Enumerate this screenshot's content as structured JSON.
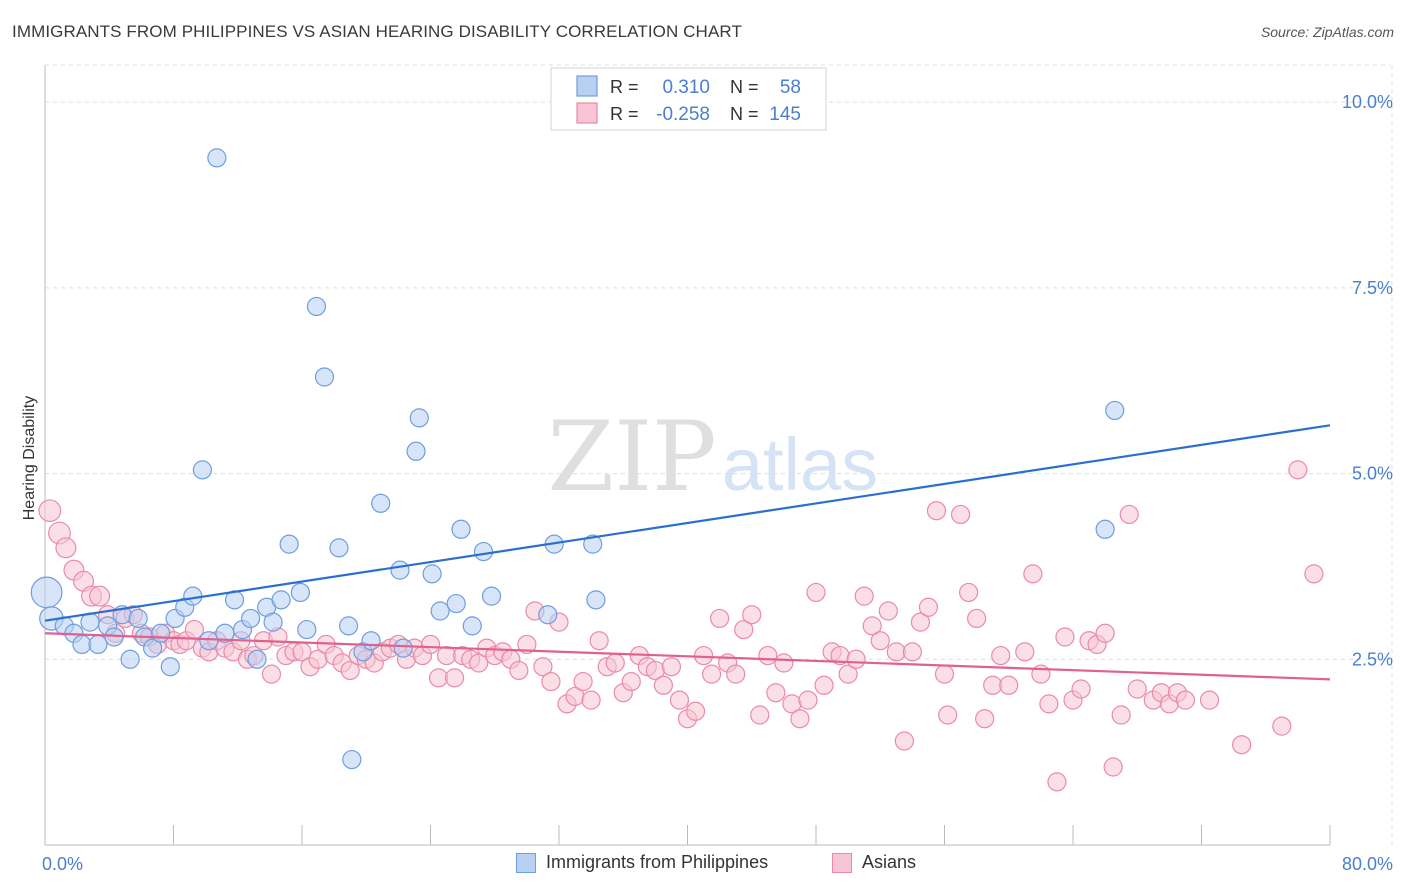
{
  "title": "IMMIGRANTS FROM PHILIPPINES VS ASIAN HEARING DISABILITY CORRELATION CHART",
  "source": "Source: ZipAtlas.com",
  "colors": {
    "blue_fill": "#b8d0f2",
    "blue_stroke": "#6d9ee0",
    "blue_line": "#2a6fd0",
    "pink_fill": "#f7c4d4",
    "pink_stroke": "#ea8aaa",
    "pink_line": "#e0608e",
    "tick_label": "#4a7fcf",
    "grid": "#dddddd"
  },
  "legend_top": [
    {
      "r_label": "R =",
      "r_value": "0.310",
      "n_label": "N =",
      "n_value": "58",
      "series": "blue"
    },
    {
      "r_label": "R =",
      "r_value": "-0.258",
      "n_label": "N =",
      "n_value": "145",
      "series": "pink"
    }
  ],
  "legend_bottom": [
    {
      "label": "Immigrants from Philippines",
      "series": "blue"
    },
    {
      "label": "Asians",
      "series": "pink"
    }
  ],
  "watermark": {
    "zip": "ZIP",
    "atlas": "atlas"
  },
  "chart_data": {
    "type": "scatter",
    "title": "IMMIGRANTS FROM PHILIPPINES VS ASIAN HEARING DISABILITY CORRELATION CHART",
    "xlabel": "",
    "ylabel": "Hearing Disability",
    "xlim": [
      0,
      80
    ],
    "ylim": [
      0,
      10.5
    ],
    "x_tick_labels": [
      {
        "value": 0,
        "label": "0.0%"
      },
      {
        "value": 80,
        "label": "80.0%"
      }
    ],
    "y_ticks": [
      {
        "value": 2.5,
        "label": "2.5%"
      },
      {
        "value": 5.0,
        "label": "5.0%"
      },
      {
        "value": 7.5,
        "label": "7.5%"
      },
      {
        "value": 10.0,
        "label": "10.0%"
      }
    ],
    "grid": true,
    "legend_position": "top-center",
    "series": [
      {
        "name": "Immigrants from Philippines",
        "color": "#6d9ee0",
        "trend": {
          "x": [
            0,
            80
          ],
          "y": [
            3.02,
            5.65
          ]
        },
        "points": [
          [
            0.1,
            3.4,
            1.7
          ],
          [
            0.4,
            3.05,
            1.3
          ],
          [
            1.2,
            2.95,
            1
          ],
          [
            1.8,
            2.85,
            1
          ],
          [
            2.3,
            2.7,
            1
          ],
          [
            2.8,
            3.0,
            1
          ],
          [
            3.3,
            2.7,
            1
          ],
          [
            3.9,
            2.95,
            1
          ],
          [
            4.3,
            2.8,
            1
          ],
          [
            4.8,
            3.1,
            1
          ],
          [
            5.3,
            2.5,
            1
          ],
          [
            5.8,
            3.05,
            1
          ],
          [
            6.2,
            2.8,
            1
          ],
          [
            6.7,
            2.65,
            1
          ],
          [
            7.2,
            2.85,
            1
          ],
          [
            7.8,
            2.4,
            1
          ],
          [
            8.1,
            3.05,
            1
          ],
          [
            8.7,
            3.2,
            1
          ],
          [
            9.2,
            3.35,
            1
          ],
          [
            9.8,
            5.05,
            1
          ],
          [
            10.2,
            2.75,
            1
          ],
          [
            10.7,
            9.25,
            1
          ],
          [
            11.2,
            2.85,
            1
          ],
          [
            11.8,
            3.3,
            1
          ],
          [
            12.3,
            2.9,
            1
          ],
          [
            12.8,
            3.05,
            1
          ],
          [
            13.2,
            2.5,
            1
          ],
          [
            13.8,
            3.2,
            1
          ],
          [
            14.2,
            3.0,
            1
          ],
          [
            14.7,
            3.3,
            1
          ],
          [
            15.2,
            4.05,
            1
          ],
          [
            15.9,
            3.4,
            1
          ],
          [
            16.3,
            2.9,
            1
          ],
          [
            16.9,
            7.25,
            1
          ],
          [
            17.4,
            6.3,
            1
          ],
          [
            18.3,
            4.0,
            1
          ],
          [
            18.9,
            2.95,
            1
          ],
          [
            19.1,
            1.15,
            1
          ],
          [
            19.8,
            2.6,
            1
          ],
          [
            20.3,
            2.75,
            1
          ],
          [
            20.9,
            4.6,
            1
          ],
          [
            22.1,
            3.7,
            1
          ],
          [
            22.3,
            2.65,
            1
          ],
          [
            23.1,
            5.3,
            1
          ],
          [
            23.3,
            5.75,
            1
          ],
          [
            24.1,
            3.65,
            1
          ],
          [
            24.6,
            3.15,
            1
          ],
          [
            25.6,
            3.25,
            1
          ],
          [
            25.9,
            4.25,
            1
          ],
          [
            26.6,
            2.95,
            1
          ],
          [
            27.3,
            3.95,
            1
          ],
          [
            27.8,
            3.35,
            1
          ],
          [
            31.3,
            3.1,
            1
          ],
          [
            31.7,
            4.05,
            1
          ],
          [
            34.1,
            4.05,
            1
          ],
          [
            34.3,
            3.3,
            1
          ],
          [
            66.0,
            4.25,
            1
          ],
          [
            66.6,
            5.85,
            1
          ]
        ]
      },
      {
        "name": "Asians",
        "color": "#ea8aaa",
        "trend": {
          "x": [
            0,
            80
          ],
          "y": [
            2.85,
            2.23
          ]
        },
        "points": [
          [
            0.3,
            4.5,
            1.2
          ],
          [
            0.9,
            4.2,
            1.2
          ],
          [
            1.3,
            4.0,
            1.1
          ],
          [
            1.8,
            3.7,
            1.1
          ],
          [
            2.4,
            3.55,
            1.1
          ],
          [
            2.9,
            3.35,
            1.1
          ],
          [
            3.4,
            3.35,
            1.1
          ],
          [
            3.9,
            3.1,
            1
          ],
          [
            4.4,
            2.85,
            1
          ],
          [
            5.0,
            3.05,
            1
          ],
          [
            5.5,
            3.1,
            1
          ],
          [
            6.0,
            2.85,
            1
          ],
          [
            6.5,
            2.8,
            1
          ],
          [
            7.0,
            2.7,
            1
          ],
          [
            7.5,
            2.85,
            1
          ],
          [
            8.0,
            2.75,
            1
          ],
          [
            8.4,
            2.7,
            1
          ],
          [
            8.8,
            2.75,
            1
          ],
          [
            9.3,
            2.9,
            1
          ],
          [
            9.8,
            2.65,
            1
          ],
          [
            10.2,
            2.6,
            1
          ],
          [
            10.7,
            2.75,
            1
          ],
          [
            11.2,
            2.65,
            1
          ],
          [
            11.7,
            2.6,
            1
          ],
          [
            12.2,
            2.75,
            1
          ],
          [
            12.6,
            2.5,
            1
          ],
          [
            13.0,
            2.55,
            1
          ],
          [
            13.6,
            2.75,
            1
          ],
          [
            14.1,
            2.3,
            1
          ],
          [
            14.5,
            2.8,
            1
          ],
          [
            15.0,
            2.55,
            1
          ],
          [
            15.5,
            2.6,
            1
          ],
          [
            16.0,
            2.6,
            1
          ],
          [
            16.5,
            2.4,
            1
          ],
          [
            17.0,
            2.5,
            1
          ],
          [
            17.5,
            2.7,
            1
          ],
          [
            18.0,
            2.55,
            1
          ],
          [
            18.5,
            2.45,
            1
          ],
          [
            19.0,
            2.35,
            1
          ],
          [
            19.5,
            2.55,
            1
          ],
          [
            20.0,
            2.5,
            1
          ],
          [
            20.5,
            2.45,
            1
          ],
          [
            21.0,
            2.6,
            1
          ],
          [
            21.5,
            2.65,
            1
          ],
          [
            22.0,
            2.7,
            1
          ],
          [
            22.5,
            2.5,
            1
          ],
          [
            23.0,
            2.65,
            1
          ],
          [
            23.5,
            2.55,
            1
          ],
          [
            24.0,
            2.7,
            1
          ],
          [
            24.5,
            2.25,
            1
          ],
          [
            25.0,
            2.55,
            1
          ],
          [
            25.5,
            2.25,
            1
          ],
          [
            26.0,
            2.55,
            1
          ],
          [
            26.5,
            2.5,
            1
          ],
          [
            27.0,
            2.45,
            1
          ],
          [
            27.5,
            2.65,
            1
          ],
          [
            28.0,
            2.55,
            1
          ],
          [
            28.5,
            2.6,
            1
          ],
          [
            29.0,
            2.5,
            1
          ],
          [
            29.5,
            2.35,
            1
          ],
          [
            30.0,
            2.7,
            1
          ],
          [
            30.5,
            3.15,
            1
          ],
          [
            31.0,
            2.4,
            1
          ],
          [
            31.5,
            2.2,
            1
          ],
          [
            32.0,
            3.0,
            1
          ],
          [
            32.5,
            1.9,
            1
          ],
          [
            33.0,
            2.0,
            1
          ],
          [
            33.5,
            2.2,
            1
          ],
          [
            34.0,
            1.95,
            1
          ],
          [
            34.5,
            2.75,
            1
          ],
          [
            35.0,
            2.4,
            1
          ],
          [
            35.5,
            2.45,
            1
          ],
          [
            36.0,
            2.05,
            1
          ],
          [
            36.5,
            2.2,
            1
          ],
          [
            37.0,
            2.55,
            1
          ],
          [
            37.5,
            2.4,
            1
          ],
          [
            38.0,
            2.35,
            1
          ],
          [
            38.5,
            2.15,
            1
          ],
          [
            39.0,
            2.4,
            1
          ],
          [
            39.5,
            1.95,
            1
          ],
          [
            40.0,
            1.7,
            1
          ],
          [
            40.5,
            1.8,
            1
          ],
          [
            41.0,
            2.55,
            1
          ],
          [
            41.5,
            2.3,
            1
          ],
          [
            42.0,
            3.05,
            1
          ],
          [
            42.5,
            2.45,
            1
          ],
          [
            43.0,
            2.3,
            1
          ],
          [
            43.5,
            2.9,
            1
          ],
          [
            44.0,
            3.1,
            1
          ],
          [
            44.5,
            1.75,
            1
          ],
          [
            45.0,
            2.55,
            1
          ],
          [
            45.5,
            2.05,
            1
          ],
          [
            46.0,
            2.45,
            1
          ],
          [
            46.5,
            1.9,
            1
          ],
          [
            47.0,
            1.7,
            1
          ],
          [
            47.5,
            1.95,
            1
          ],
          [
            48.0,
            3.4,
            1
          ],
          [
            48.5,
            2.15,
            1
          ],
          [
            49.0,
            2.6,
            1
          ],
          [
            49.5,
            2.55,
            1
          ],
          [
            50.0,
            2.3,
            1
          ],
          [
            50.5,
            2.5,
            1
          ],
          [
            51.0,
            3.35,
            1
          ],
          [
            51.5,
            2.95,
            1
          ],
          [
            52.0,
            2.75,
            1
          ],
          [
            52.5,
            3.15,
            1
          ],
          [
            53.0,
            2.6,
            1
          ],
          [
            53.5,
            1.4,
            1
          ],
          [
            54.0,
            2.6,
            1
          ],
          [
            54.5,
            3.0,
            1
          ],
          [
            55.0,
            3.2,
            1
          ],
          [
            55.5,
            4.5,
            1
          ],
          [
            56.0,
            2.3,
            1
          ],
          [
            56.2,
            1.75,
            1
          ],
          [
            57.0,
            4.45,
            1
          ],
          [
            57.5,
            3.4,
            1
          ],
          [
            58.0,
            3.05,
            1
          ],
          [
            58.5,
            1.7,
            1
          ],
          [
            59.0,
            2.15,
            1
          ],
          [
            59.5,
            2.55,
            1
          ],
          [
            60.0,
            2.15,
            1
          ],
          [
            61.0,
            2.6,
            1
          ],
          [
            61.5,
            3.65,
            1
          ],
          [
            62.0,
            2.3,
            1
          ],
          [
            62.5,
            1.9,
            1
          ],
          [
            63.0,
            0.85,
            1
          ],
          [
            63.5,
            2.8,
            1
          ],
          [
            64.0,
            1.95,
            1
          ],
          [
            64.5,
            2.1,
            1
          ],
          [
            65.0,
            2.75,
            1
          ],
          [
            65.5,
            2.7,
            1
          ],
          [
            66.0,
            2.85,
            1
          ],
          [
            66.5,
            1.05,
            1
          ],
          [
            67.0,
            1.75,
            1
          ],
          [
            67.5,
            4.45,
            1
          ],
          [
            68.0,
            2.1,
            1
          ],
          [
            69.0,
            1.95,
            1
          ],
          [
            69.5,
            2.05,
            1
          ],
          [
            70.0,
            1.9,
            1
          ],
          [
            70.5,
            2.05,
            1
          ],
          [
            71.0,
            1.95,
            1
          ],
          [
            72.5,
            1.95,
            1
          ],
          [
            74.5,
            1.35,
            1
          ],
          [
            77.0,
            1.6,
            1
          ],
          [
            78.0,
            5.05,
            1
          ],
          [
            79.0,
            3.65,
            1
          ]
        ]
      }
    ]
  }
}
